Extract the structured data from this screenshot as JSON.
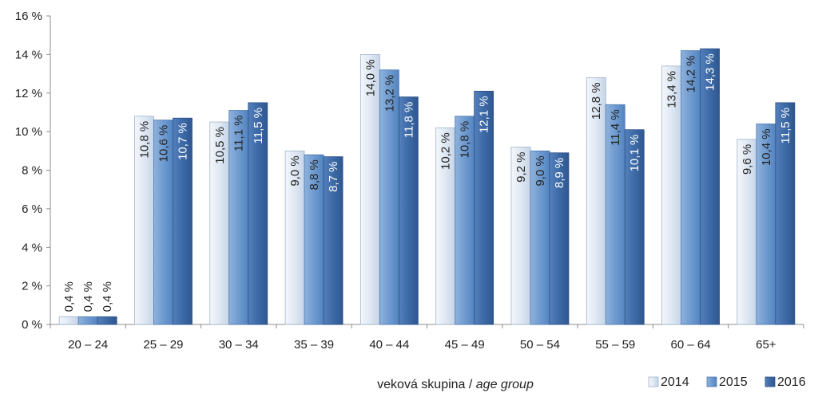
{
  "chart_data": {
    "type": "bar",
    "categories": [
      "20 – 24",
      "25 – 29",
      "30 – 34",
      "35 – 39",
      "40 – 44",
      "45 – 49",
      "50 – 54",
      "55 – 59",
      "60 – 64",
      "65+"
    ],
    "series": [
      {
        "name": "2014",
        "values": [
          0.4,
          10.8,
          10.5,
          9.0,
          14.0,
          10.2,
          9.2,
          12.8,
          13.4,
          9.6
        ],
        "labels": [
          "0,4 %",
          "10,8 %",
          "10,5 %",
          "9,0 %",
          "14,0 %",
          "10,2 %",
          "9,2 %",
          "12,8 %",
          "13,4 %",
          "9,6 %"
        ],
        "color": "#dce6f1"
      },
      {
        "name": "2015",
        "values": [
          0.4,
          10.6,
          11.1,
          8.8,
          13.2,
          10.8,
          9.0,
          11.4,
          14.2,
          10.4
        ],
        "labels": [
          "0,4 %",
          "10,6 %",
          "11,1 %",
          "8,8 %",
          "13,2 %",
          "10,8 %",
          "9,0 %",
          "11,4 %",
          "14,2 %",
          "10,4 %"
        ],
        "color": "#6f9bd0"
      },
      {
        "name": "2016",
        "values": [
          0.4,
          10.7,
          11.5,
          8.7,
          11.8,
          12.1,
          8.9,
          10.1,
          14.3,
          11.5
        ],
        "labels": [
          "0,4 %",
          "10,7 %",
          "11,5 %",
          "8,7 %",
          "11,8 %",
          "12,1 %",
          "8,9 %",
          "10,1 %",
          "14,3 %",
          "11,5 %"
        ],
        "color": "#3d6aa6"
      }
    ],
    "ylim": [
      0,
      16
    ],
    "yticks": [
      "0 %",
      "2 %",
      "4 %",
      "6 %",
      "8 %",
      "10 %",
      "12 %",
      "14 %",
      "16 %"
    ],
    "xlabel": "veková skupina / ",
    "xlabel_italic": "age group",
    "legend_position": "bottom-right"
  }
}
